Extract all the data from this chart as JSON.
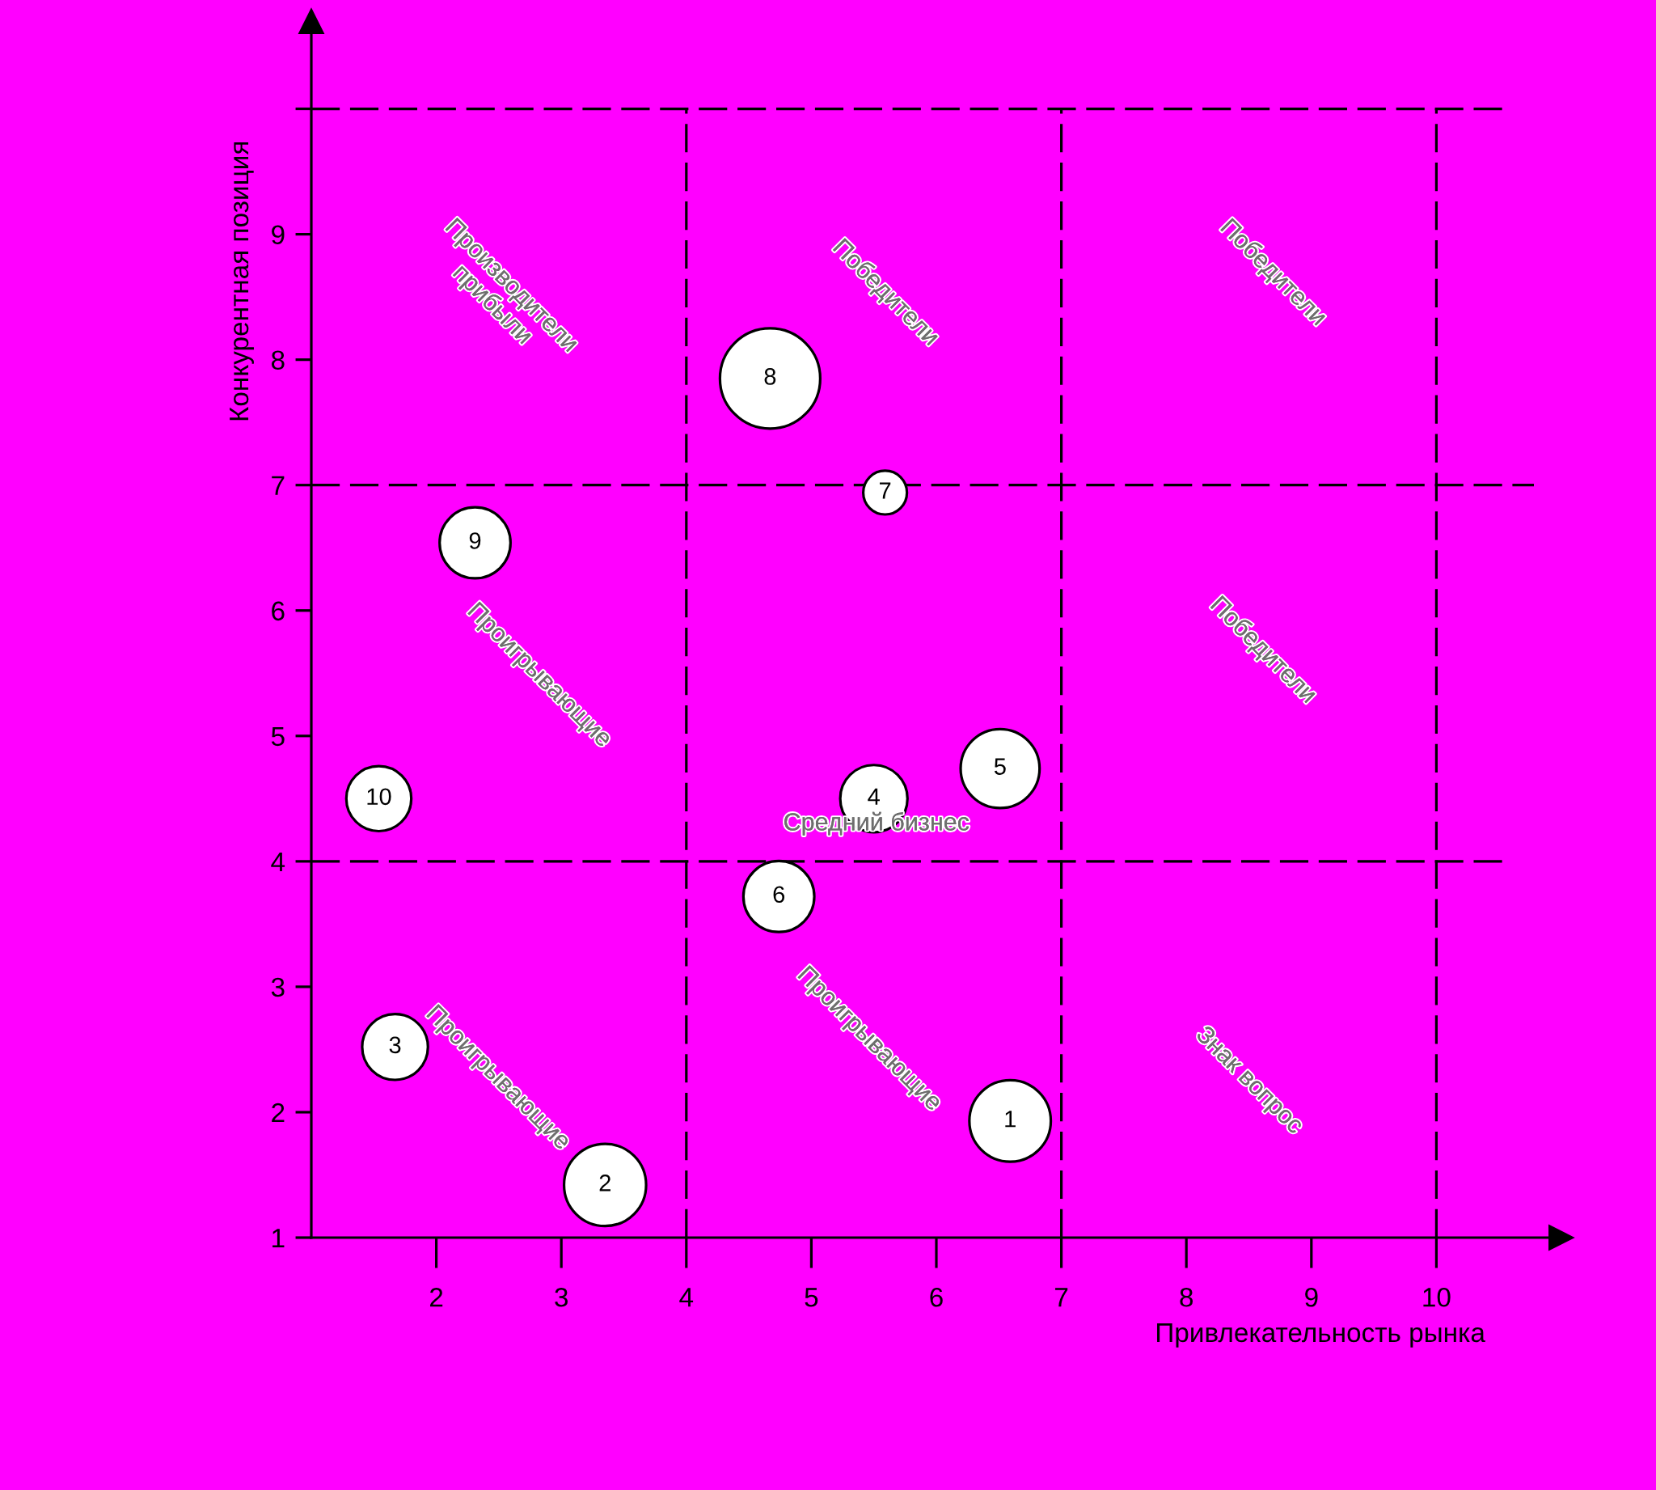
{
  "chart_data": {
    "type": "bubble",
    "xlabel": "Привлекательность рынка",
    "ylabel": "Конкурентная позиция",
    "x": [
      6.59,
      3.35,
      1.67,
      5.5,
      6.51,
      4.74,
      5.59,
      4.67,
      2.31,
      1.54
    ],
    "values": [
      1.93,
      1.42,
      2.52,
      4.5,
      4.74,
      3.72,
      6.94,
      7.85,
      6.54,
      4.5
    ],
    "sizes": [
      0.66,
      0.67,
      0.43,
      0.45,
      0.62,
      0.5,
      0.19,
      1,
      0.5,
      0.42
    ],
    "color": "#ffffff",
    "marker": "circle",
    "xlim": [
      1,
      11
    ],
    "ylim": [
      1,
      10.7
    ],
    "xticks": [
      2,
      3,
      4,
      5,
      6,
      7,
      8,
      9,
      10
    ],
    "yticks": [
      1,
      2,
      3,
      4,
      5,
      6,
      7,
      8,
      9,
      {
        "value": 10,
        "label": null
      }
    ],
    "ref_lines": [
      {
        "axis": "x",
        "value": 4,
        "color": "#000000",
        "line_style": "dashed"
      },
      {
        "axis": "x",
        "value": 7,
        "color": "#000000",
        "line_style": "dashed"
      },
      {
        "axis": "x",
        "value": 10,
        "color": "#000000",
        "line_style": "dashed"
      },
      {
        "axis": "y",
        "value": 4,
        "color": "#000000",
        "line_style": "dashed"
      },
      {
        "axis": "y",
        "value": 7,
        "color": "#000000",
        "line_style": "dashed"
      },
      {
        "axis": "y",
        "value": 10,
        "color": "#000000",
        "line_style": "dashed"
      }
    ],
    "annotations": [
      "Производители\nприбыли",
      "Победители",
      "Победители",
      "Проигрывающие",
      "Средний бизнес",
      "Победители",
      "Проигрывающие",
      "Проигрывающие",
      "Знак вопрос",
      {
        "text": "1",
        "x": 6.59,
        "y": 1.93
      },
      {
        "text": "2",
        "x": 3.35,
        "y": 1.42
      },
      {
        "text": "3",
        "x": 1.67,
        "y": 2.52
      },
      {
        "text": "4",
        "x": 5.5,
        "y": 4.5
      },
      {
        "text": "5",
        "x": 6.51,
        "y": 4.74
      },
      {
        "text": "6",
        "x": 4.74,
        "y": 3.72
      },
      {
        "text": "7",
        "x": 5.59,
        "y": 6.94
      },
      {
        "text": "8",
        "x": 4.67,
        "y": 7.85
      },
      {
        "text": "9",
        "x": 2.31,
        "y": 6.54
      },
      {
        "text": "10",
        "x": 1.54,
        "y": 4.5
      }
    ]
  }
}
